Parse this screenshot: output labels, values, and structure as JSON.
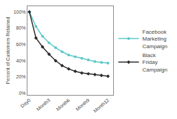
{
  "chart_data": {
    "type": "line",
    "y_label": "Percent of Customers Retained",
    "x": [
      0,
      1,
      2,
      3,
      4,
      5,
      6,
      7,
      8,
      9,
      10,
      11,
      12
    ],
    "series": [
      {
        "name": "Facebook Marketing Campaign",
        "color": "#5CC8C8",
        "marker": "circle",
        "values": [
          100,
          82,
          70,
          62,
          56,
          51,
          47,
          45,
          43,
          41,
          39,
          38,
          37
        ]
      },
      {
        "name": "Black Friday Campaign",
        "color": "#2a2a2a",
        "marker": "diamond",
        "values": [
          100,
          68,
          57,
          48,
          40,
          34,
          30,
          27,
          25,
          24,
          23,
          22,
          21
        ]
      }
    ],
    "xlim": [
      -0.3,
      12.8
    ],
    "xticks": [
      {
        "value": 0,
        "label": "Day0"
      },
      {
        "value": 3,
        "label": "Month3"
      },
      {
        "value": 6,
        "label": "Month6"
      },
      {
        "value": 9,
        "label": "Month9"
      },
      {
        "value": 12,
        "label": "Month12"
      }
    ],
    "ylim": [
      -2,
      107
    ],
    "yticks": [
      {
        "value": 0,
        "label": "0%"
      },
      {
        "value": 20,
        "label": "20%"
      },
      {
        "value": 40,
        "label": "40%"
      },
      {
        "value": 60,
        "label": "60%"
      },
      {
        "value": 80,
        "label": "80%"
      },
      {
        "value": 100,
        "label": "100%"
      }
    ],
    "grid": false,
    "legend": "right"
  }
}
